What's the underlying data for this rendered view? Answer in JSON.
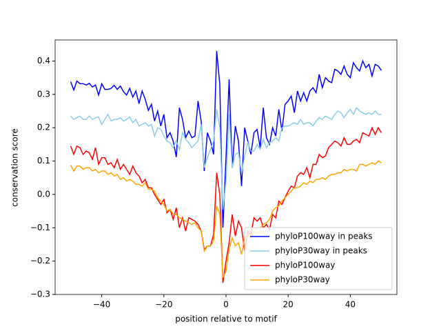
{
  "chart_data": {
    "type": "line",
    "xlabel": "position relative to motif",
    "ylabel": "conservation score",
    "x": [
      -50,
      -49,
      -48,
      -47,
      -46,
      -45,
      -44,
      -43,
      -42,
      -41,
      -40,
      -39,
      -38,
      -37,
      -36,
      -35,
      -34,
      -33,
      -32,
      -31,
      -30,
      -29,
      -28,
      -27,
      -26,
      -25,
      -24,
      -23,
      -22,
      -21,
      -20,
      -19,
      -18,
      -17,
      -16,
      -15,
      -14,
      -13,
      -12,
      -11,
      -10,
      -9,
      -8,
      -7,
      -6,
      -5,
      -4,
      -3,
      -2,
      -1,
      0,
      1,
      2,
      3,
      4,
      5,
      6,
      7,
      8,
      9,
      10,
      11,
      12,
      13,
      14,
      15,
      16,
      17,
      18,
      19,
      20,
      21,
      22,
      23,
      24,
      25,
      26,
      27,
      28,
      29,
      30,
      31,
      32,
      33,
      34,
      35,
      36,
      37,
      38,
      39,
      40,
      41,
      42,
      43,
      44,
      45,
      46,
      47,
      48,
      49,
      50
    ],
    "series": [
      {
        "name": "phyloP100way in peaks",
        "color": "#0000ff",
        "values": [
          0.338,
          0.313,
          0.34,
          0.332,
          0.332,
          0.328,
          0.333,
          0.322,
          0.328,
          0.298,
          0.332,
          0.315,
          0.315,
          0.318,
          0.327,
          0.315,
          0.325,
          0.308,
          0.298,
          0.318,
          0.292,
          0.31,
          0.272,
          0.31,
          0.285,
          0.252,
          0.27,
          0.22,
          0.25,
          0.205,
          0.24,
          0.17,
          0.185,
          0.16,
          0.112,
          0.26,
          0.225,
          0.17,
          0.19,
          0.17,
          0.175,
          0.28,
          0.22,
          0.07,
          0.185,
          0.16,
          0.12,
          0.43,
          0.33,
          -0.1,
          0.11,
          0.345,
          0.08,
          0.205,
          0.16,
          0.025,
          0.2,
          0.16,
          0.12,
          0.185,
          0.195,
          0.14,
          0.26,
          0.17,
          0.15,
          0.2,
          0.175,
          0.255,
          0.19,
          0.27,
          0.28,
          0.295,
          0.245,
          0.31,
          0.28,
          0.305,
          0.28,
          0.31,
          0.32,
          0.305,
          0.36,
          0.32,
          0.35,
          0.34,
          0.335,
          0.375,
          0.37,
          0.36,
          0.385,
          0.36,
          0.35,
          0.395,
          0.38,
          0.37,
          0.4,
          0.38,
          0.39,
          0.355,
          0.39,
          0.385,
          0.372
        ]
      },
      {
        "name": "phyloP30way in peaks",
        "color": "#87ceeb",
        "values": [
          0.235,
          0.225,
          0.23,
          0.235,
          0.225,
          0.225,
          0.235,
          0.225,
          0.23,
          0.232,
          0.21,
          0.225,
          0.24,
          0.22,
          0.225,
          0.225,
          0.23,
          0.22,
          0.225,
          0.232,
          0.215,
          0.225,
          0.205,
          0.21,
          0.215,
          0.205,
          0.21,
          0.175,
          0.2,
          0.195,
          0.175,
          0.16,
          0.155,
          0.14,
          0.16,
          0.135,
          0.185,
          0.165,
          0.155,
          0.14,
          0.15,
          0.16,
          0.21,
          0.08,
          0.11,
          0.135,
          0.16,
          0.255,
          0.2,
          -0.045,
          0.04,
          0.24,
          0.08,
          0.12,
          0.125,
          0.065,
          0.115,
          0.155,
          0.13,
          0.13,
          0.15,
          0.135,
          0.165,
          0.14,
          0.155,
          0.16,
          0.17,
          0.16,
          0.2,
          0.205,
          0.205,
          0.21,
          0.215,
          0.21,
          0.225,
          0.21,
          0.215,
          0.215,
          0.205,
          0.22,
          0.23,
          0.225,
          0.235,
          0.23,
          0.225,
          0.24,
          0.25,
          0.245,
          0.23,
          0.245,
          0.255,
          0.24,
          0.26,
          0.25,
          0.245,
          0.24,
          0.245,
          0.24,
          0.25,
          0.24,
          0.24
        ]
      },
      {
        "name": "phyloP100way",
        "color": "#ff0000",
        "values": [
          0.145,
          0.12,
          0.145,
          0.14,
          0.12,
          0.13,
          0.125,
          0.105,
          0.14,
          0.09,
          0.11,
          0.11,
          0.09,
          0.095,
          0.08,
          0.105,
          0.075,
          0.09,
          0.075,
          0.06,
          0.085,
          0.065,
          0.055,
          0.035,
          0.045,
          0.02,
          0.02,
          0.0,
          -0.015,
          -0.03,
          -0.015,
          -0.055,
          -0.045,
          -0.075,
          -0.04,
          -0.1,
          -0.07,
          -0.11,
          -0.07,
          -0.075,
          -0.08,
          -0.09,
          -0.11,
          -0.165,
          -0.155,
          -0.155,
          -0.12,
          0.065,
          0.0,
          -0.265,
          -0.2,
          -0.145,
          -0.06,
          -0.125,
          -0.08,
          -0.1,
          -0.17,
          -0.11,
          -0.12,
          -0.07,
          -0.08,
          -0.07,
          -0.1,
          -0.09,
          -0.105,
          -0.06,
          -0.07,
          -0.02,
          -0.03,
          -0.01,
          0.01,
          0.025,
          0.02,
          0.055,
          0.065,
          0.06,
          0.08,
          0.05,
          0.09,
          0.09,
          0.12,
          0.11,
          0.115,
          0.14,
          0.15,
          0.16,
          0.155,
          0.145,
          0.17,
          0.15,
          0.15,
          0.16,
          0.165,
          0.155,
          0.185,
          0.18,
          0.175,
          0.2,
          0.18,
          0.2,
          0.185
        ]
      },
      {
        "name": "phyloP30way",
        "color": "#ffa500",
        "values": [
          0.088,
          0.07,
          0.085,
          0.085,
          0.075,
          0.08,
          0.08,
          0.07,
          0.075,
          0.065,
          0.07,
          0.07,
          0.06,
          0.065,
          0.055,
          0.06,
          0.045,
          0.05,
          0.04,
          0.045,
          0.04,
          0.03,
          0.03,
          0.025,
          0.035,
          0.015,
          0.015,
          0.01,
          -0.01,
          -0.02,
          -0.03,
          -0.05,
          -0.045,
          -0.06,
          -0.06,
          -0.07,
          -0.075,
          -0.08,
          -0.085,
          -0.09,
          -0.085,
          -0.1,
          -0.11,
          -0.17,
          -0.155,
          -0.155,
          -0.14,
          -0.035,
          -0.06,
          -0.25,
          -0.23,
          -0.165,
          -0.13,
          -0.155,
          -0.145,
          -0.18,
          -0.13,
          -0.12,
          -0.13,
          -0.11,
          -0.1,
          -0.1,
          -0.09,
          -0.085,
          -0.075,
          -0.05,
          -0.04,
          -0.035,
          -0.02,
          -0.01,
          0,
          0.01,
          0.02,
          0.02,
          0.025,
          0.035,
          0.03,
          0.04,
          0.035,
          0.045,
          0.045,
          0.05,
          0.045,
          0.055,
          0.06,
          0.06,
          0.065,
          0.065,
          0.075,
          0.07,
          0.075,
          0.075,
          0.07,
          0.09,
          0.09,
          0.085,
          0.09,
          0.095,
          0.09,
          0.1,
          0.095
        ]
      }
    ],
    "xlim": [
      -55,
      55
    ],
    "xticks": [
      {
        "value": -40,
        "label": "−40"
      },
      {
        "value": -20,
        "label": "−20"
      },
      0,
      20,
      40
    ],
    "ylim": [
      -0.3,
      0.463
    ],
    "yticks": [
      {
        "value": -0.3,
        "label": "−0.3"
      },
      {
        "value": -0.2,
        "label": "−0.2"
      },
      {
        "value": -0.1,
        "label": "−0.1"
      },
      {
        "value": 0,
        "label": "0.0"
      },
      0.1,
      0.2,
      0.3,
      0.4
    ],
    "legend": "lower right"
  }
}
